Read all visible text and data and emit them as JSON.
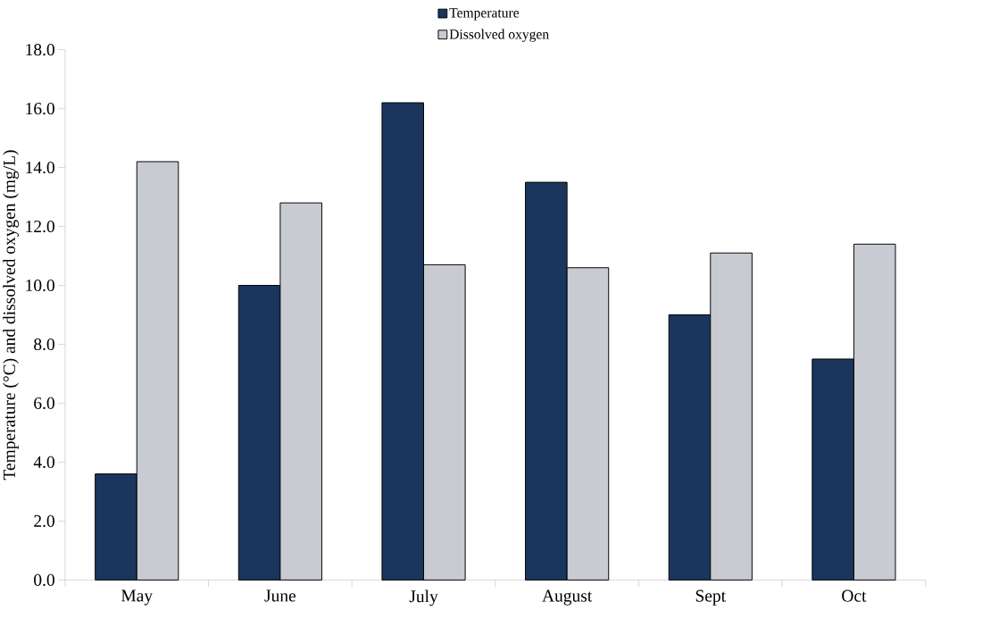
{
  "chart_data": {
    "type": "bar",
    "ylabel": "Temperature (°C) and dissolved oxygen (mg/L)",
    "categories": [
      "May",
      "June",
      "July",
      "August",
      "Sept",
      "Oct"
    ],
    "series": [
      {
        "name": "Temperature",
        "color": "#1a365d",
        "values": [
          3.6,
          10.0,
          16.2,
          13.5,
          9.0,
          7.5
        ]
      },
      {
        "name": "Dissolved oxygen",
        "color": "#c9cbd3",
        "values": [
          14.2,
          12.8,
          10.7,
          10.6,
          11.1,
          11.4
        ]
      }
    ],
    "ylim": [
      0,
      18
    ],
    "yticks": [
      {
        "value": 0,
        "label": "0.0"
      },
      {
        "value": 2,
        "label": "2.0"
      },
      {
        "value": 4,
        "label": "4.0"
      },
      {
        "value": 6,
        "label": "6.0"
      },
      {
        "value": 8,
        "label": "8.0"
      },
      {
        "value": 10,
        "label": "10.0"
      },
      {
        "value": 12,
        "label": "12.0"
      },
      {
        "value": 14,
        "label": "14.0"
      },
      {
        "value": 16,
        "label": "16.0"
      },
      {
        "value": 18,
        "label": "18.0"
      }
    ],
    "grid": false,
    "legend": "top"
  }
}
